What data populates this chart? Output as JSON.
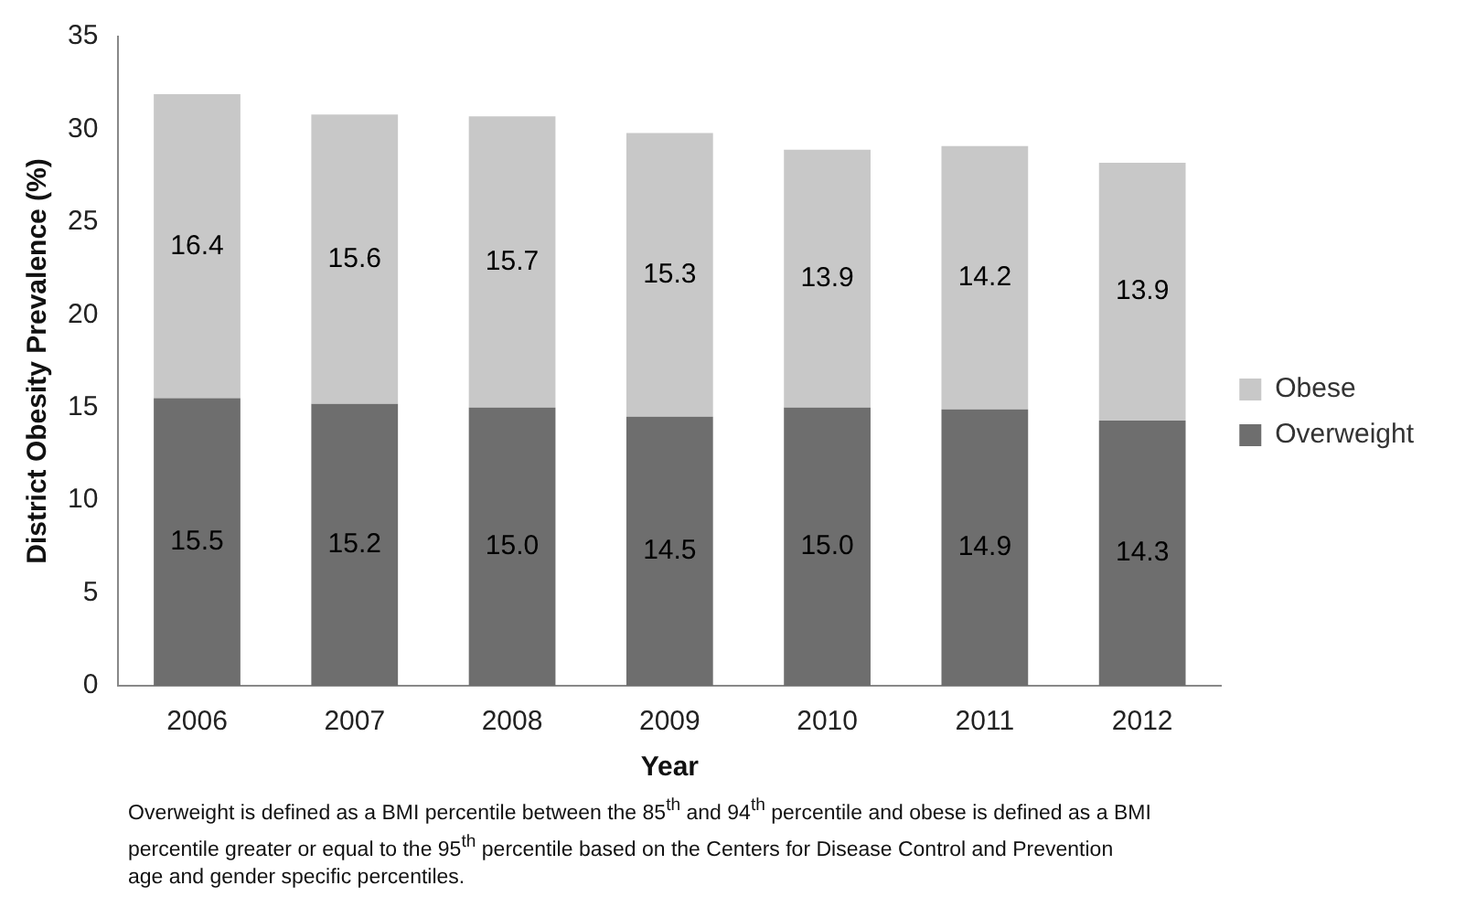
{
  "chart_data": {
    "type": "bar",
    "stacked": true,
    "xlabel": "Year",
    "ylabel": "District Obesity Prevalence (%)",
    "categories": [
      "2006",
      "2007",
      "2008",
      "2009",
      "2010",
      "2011",
      "2012"
    ],
    "series": [
      {
        "name": "Overweight",
        "color": "#6e6e6e",
        "values": [
          15.5,
          15.2,
          15.0,
          14.5,
          15.0,
          14.9,
          14.3
        ],
        "value_labels": [
          "15.5",
          "15.2",
          "15.0",
          "14.5",
          "15.0",
          "14.9",
          "14.3"
        ]
      },
      {
        "name": "Obese",
        "color": "#c8c8c8",
        "values": [
          16.4,
          15.6,
          15.7,
          15.3,
          13.9,
          14.2,
          13.9
        ],
        "value_labels": [
          "16.4",
          "15.6",
          "15.7",
          "15.3",
          "13.9",
          "14.2",
          "13.9"
        ]
      }
    ],
    "ylim": [
      0,
      35
    ],
    "yticks": [
      0,
      5,
      10,
      15,
      20,
      25,
      30,
      35
    ],
    "grid": false,
    "legend": "right",
    "annotations": [
      "Overweight is defined as a BMI percentile between the 85$^{th}$ and 94$^{th}$ percentile and obese is defined as a BMI percentile greater or equal to the 95$^{th}$ percentile based on the Centers for Disease Control and Prevention age and gender specific percentiles."
    ]
  }
}
